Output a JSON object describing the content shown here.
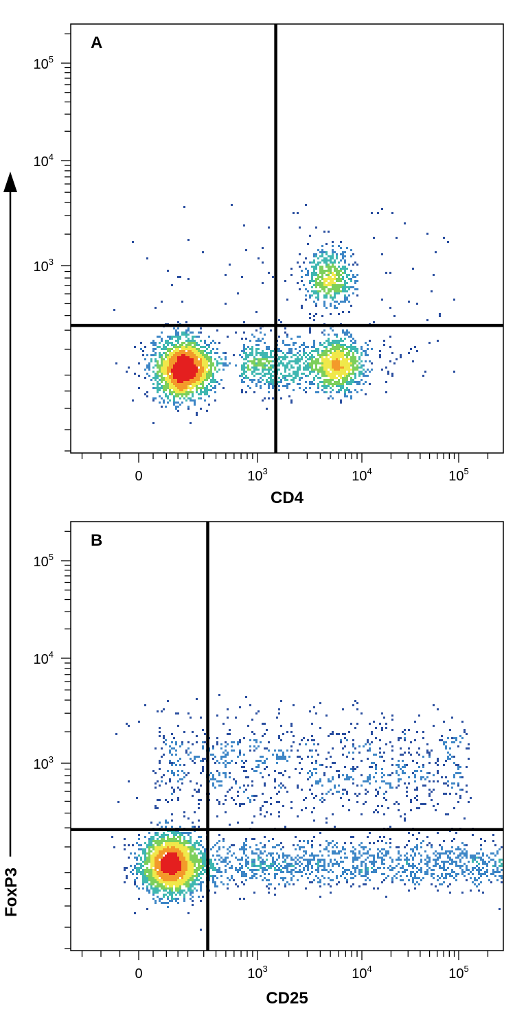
{
  "chart_data": [
    {
      "type": "scatter",
      "panel_label": "A",
      "xlabel": "CD4",
      "ylabel": "FoxP3",
      "x_scale": "biexponential",
      "y_scale": "biexponential",
      "x_tick_labels": [
        {
          "base": "0",
          "exp": ""
        },
        {
          "base": "10",
          "exp": "3"
        },
        {
          "base": "10",
          "exp": "4"
        },
        {
          "base": "10",
          "exp": "5"
        }
      ],
      "y_tick_labels": [
        {
          "base": "10",
          "exp": "3"
        },
        {
          "base": "10",
          "exp": "4"
        },
        {
          "base": "10",
          "exp": "5"
        }
      ],
      "quadrant_gate": {
        "x": 1500,
        "y": 330
      },
      "colormap": [
        "#2b4fa0",
        "#3d86c6",
        "#3fb7b1",
        "#7ccf5b",
        "#f0e84a",
        "#f39a2a",
        "#e41f1f"
      ],
      "populations": [
        {
          "x_center": 180,
          "y_center": 120,
          "n": 1800,
          "spread": "wide"
        },
        {
          "x_center": 600,
          "y_center": 140,
          "n": 700,
          "spread": "tail"
        },
        {
          "x_center": 6000,
          "y_center": 135,
          "n": 700,
          "spread": "medium"
        },
        {
          "x_center": 4800,
          "y_center": 800,
          "n": 520,
          "spread": "medium"
        }
      ]
    },
    {
      "type": "scatter",
      "panel_label": "B",
      "xlabel": "CD25",
      "ylabel": "FoxP3",
      "x_scale": "biexponential",
      "y_scale": "biexponential",
      "x_tick_labels": [
        {
          "base": "0",
          "exp": ""
        },
        {
          "base": "10",
          "exp": "3"
        },
        {
          "base": "10",
          "exp": "4"
        },
        {
          "base": "10",
          "exp": "5"
        }
      ],
      "y_tick_labels": [
        {
          "base": "10",
          "exp": "3"
        },
        {
          "base": "10",
          "exp": "4"
        },
        {
          "base": "10",
          "exp": "5"
        }
      ],
      "quadrant_gate": {
        "x": 330,
        "y": 290
      },
      "colormap": [
        "#2b4fa0",
        "#3d86c6",
        "#3fb7b1",
        "#7ccf5b",
        "#f0e84a",
        "#f39a2a",
        "#e41f1f"
      ],
      "populations": [
        {
          "x_center": 120,
          "y_center": 130,
          "n": 2200,
          "spread": "wide"
        },
        {
          "x_center": 3000,
          "y_center": 130,
          "n": 1400,
          "spread": "smear"
        },
        {
          "x_center": 4000,
          "y_center": 900,
          "n": 900,
          "spread": "smear-high"
        }
      ]
    }
  ]
}
